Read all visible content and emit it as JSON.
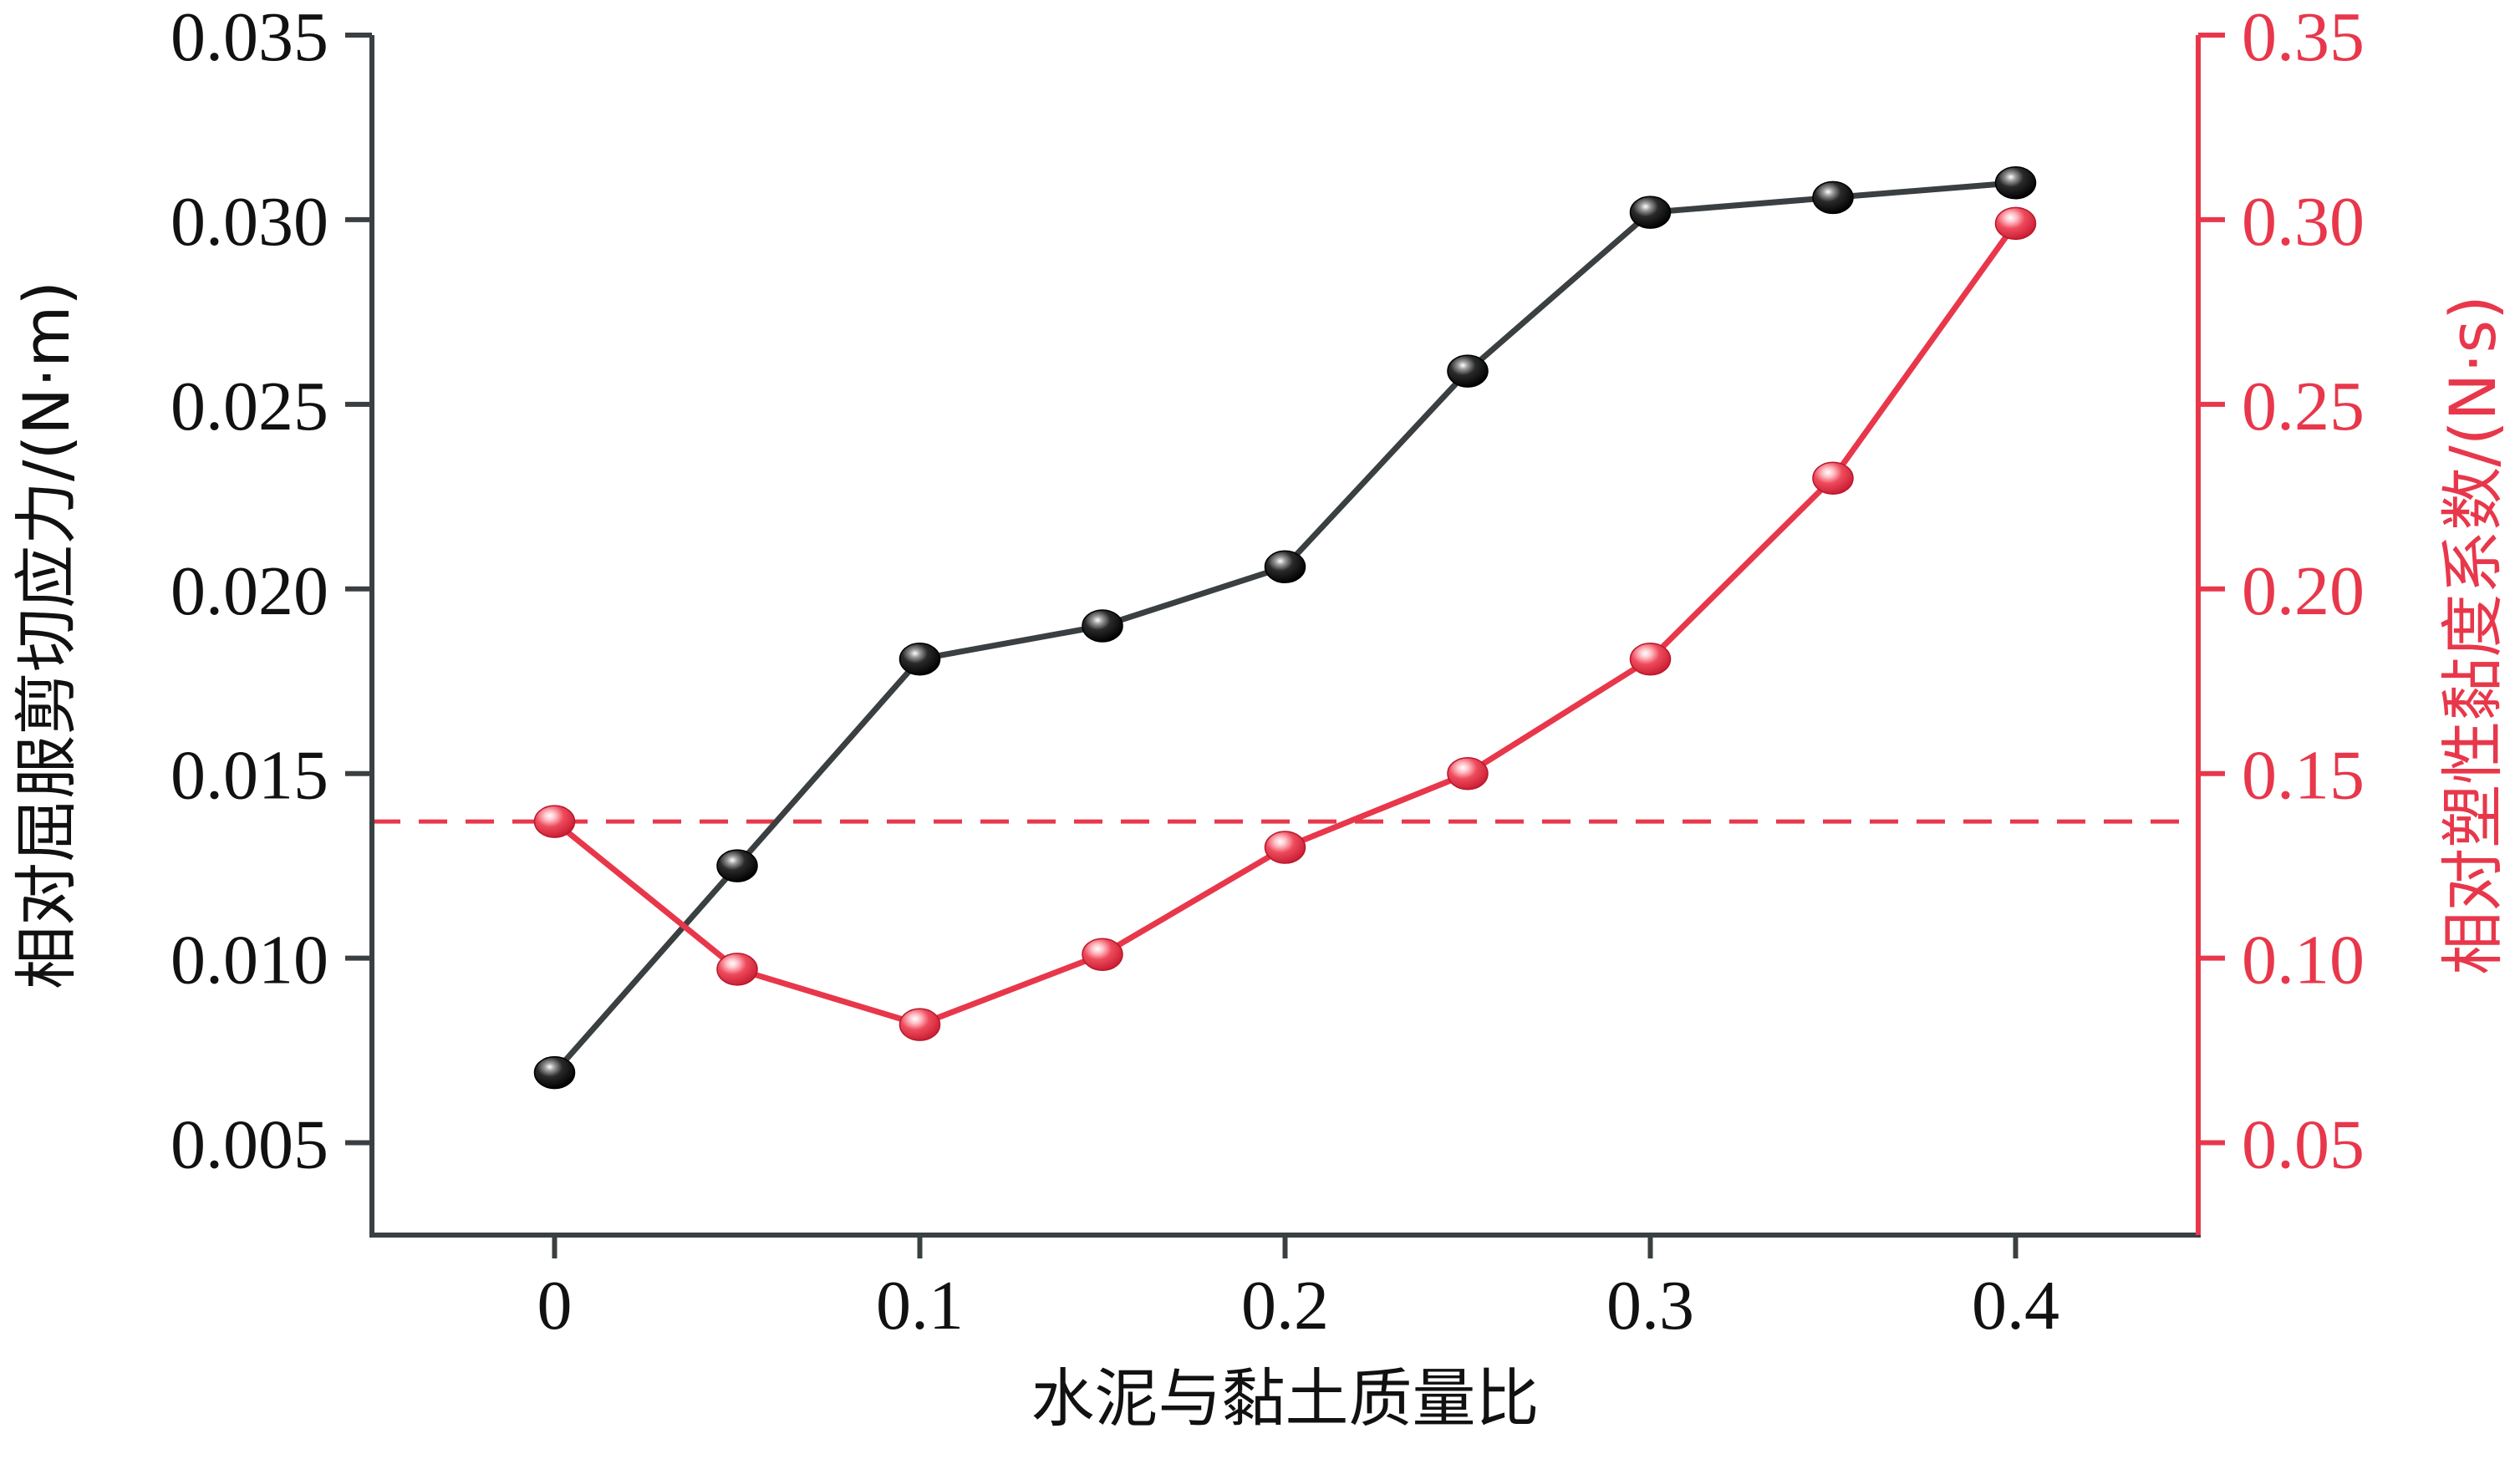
{
  "chart_data": {
    "type": "line",
    "xlabel": "水泥与黏土质量比",
    "ylabel_left": "相对屈服剪切应力/(N·m)",
    "ylabel_right": "相对塑性黏度系数/(N·s)",
    "x": [
      0,
      0.05,
      0.1,
      0.15,
      0.2,
      0.25,
      0.3,
      0.35,
      0.4
    ],
    "xlim": [
      -0.05,
      0.45
    ],
    "x_ticks": [
      0,
      0.1,
      0.2,
      0.3,
      0.4
    ],
    "x_tick_labels": [
      "0",
      "0.1",
      "0.2",
      "0.3",
      "0.4"
    ],
    "ylim_left": [
      0.0025,
      0.035
    ],
    "y_left_ticks": [
      0.005,
      0.01,
      0.015,
      0.02,
      0.025,
      0.03,
      0.035
    ],
    "y_left_tick_labels": [
      "0.005",
      "0.010",
      "0.015",
      "0.020",
      "0.025",
      "0.030",
      "0.035"
    ],
    "ylim_right": [
      0.025,
      0.35
    ],
    "y_right_ticks": [
      0.05,
      0.1,
      0.15,
      0.2,
      0.25,
      0.3,
      0.35
    ],
    "y_right_tick_labels": [
      "0.05",
      "0.10",
      "0.15",
      "0.20",
      "0.25",
      "0.30",
      "0.35"
    ],
    "series": [
      {
        "axis": "left",
        "color": "#3a3f42",
        "marker_color": "#111111",
        "values": [
          0.0069,
          0.0125,
          0.0181,
          0.019,
          0.0206,
          0.0259,
          0.0302,
          0.0306,
          0.031
        ]
      },
      {
        "axis": "right",
        "color": "#e8374b",
        "marker_color": "#e8374b",
        "values": [
          0.137,
          0.097,
          0.082,
          0.101,
          0.13,
          0.15,
          0.181,
          0.23,
          0.299
        ]
      }
    ],
    "reference_line": {
      "axis": "right",
      "value": 0.137,
      "color": "#e8374b",
      "style": "dashed"
    },
    "colors": {
      "left_axis": "#3a3f42",
      "right_axis": "#e8374b"
    },
    "grid": false,
    "legend": "none"
  }
}
